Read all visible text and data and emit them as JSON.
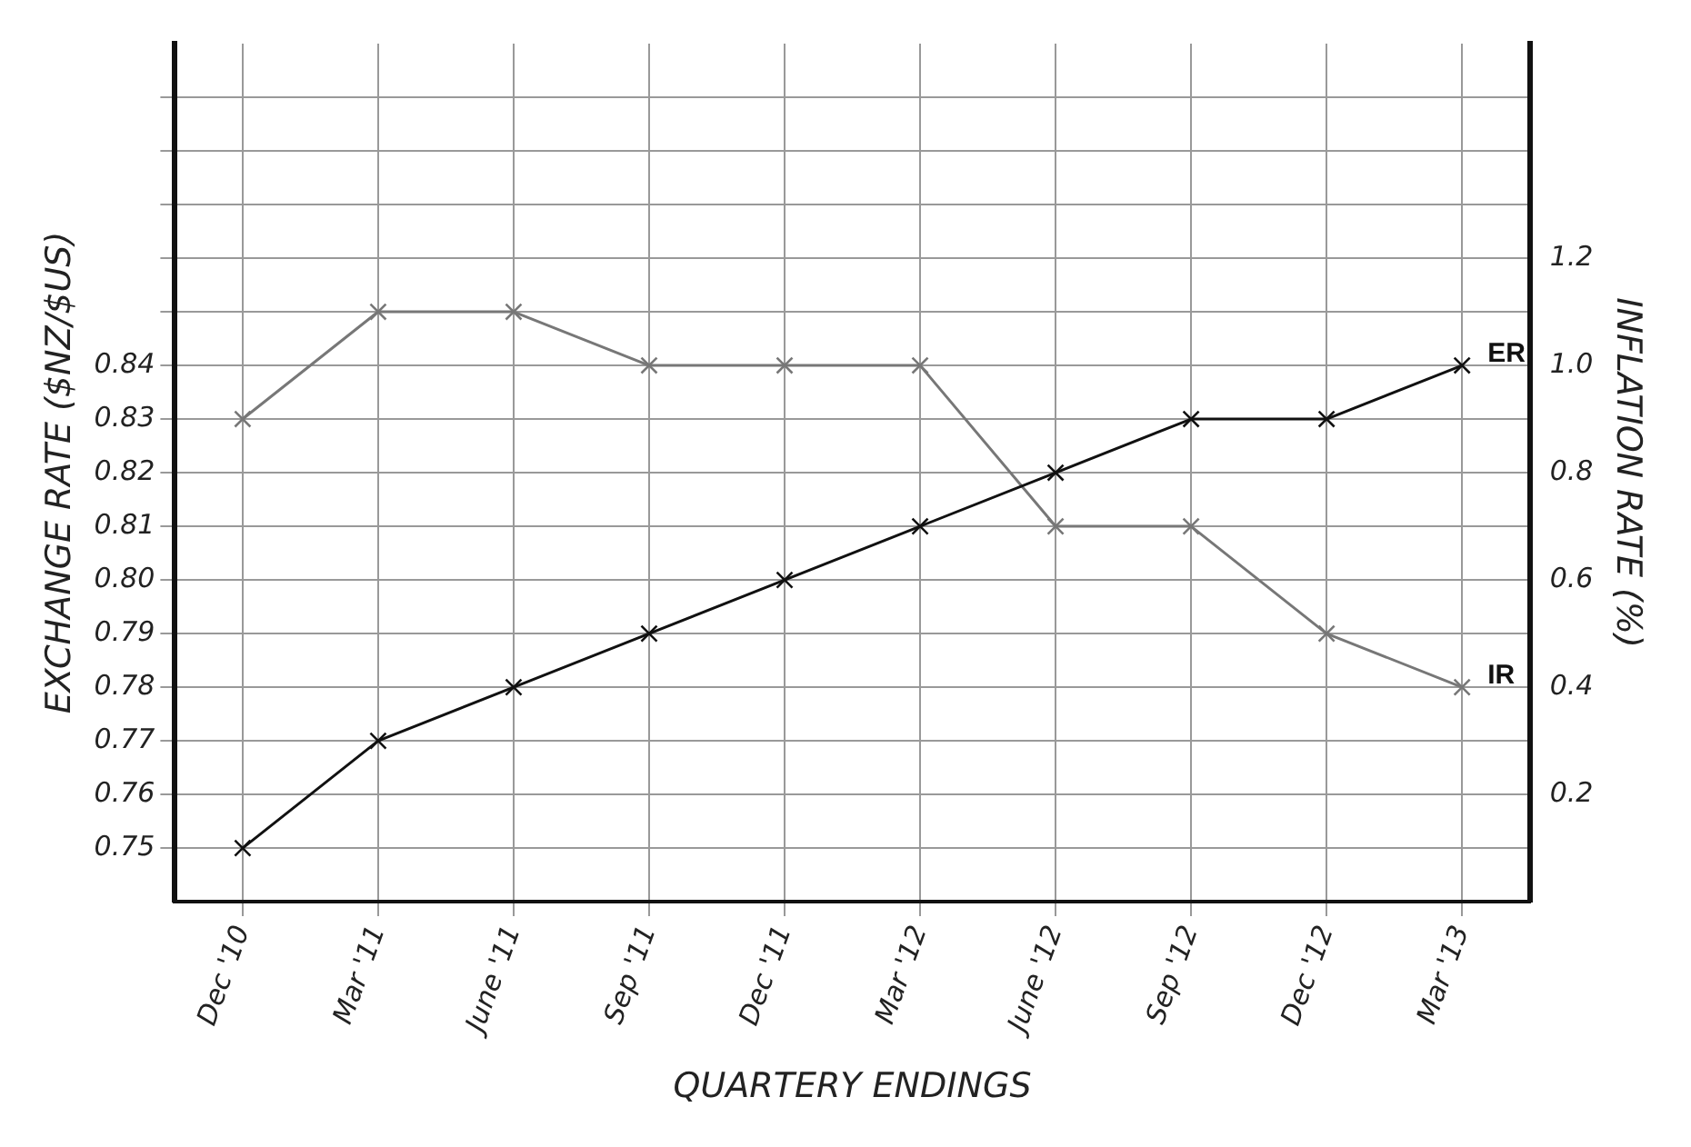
{
  "chart_data": {
    "type": "line",
    "xlabel": "QUARTERY ENDINGS",
    "ylabel": "EXCHANGE RATE ($NZ/$US)",
    "y2label": "INFLATION RATE (%)",
    "categories": [
      "Dec '10",
      "Mar '11",
      "June '11",
      "Sep '11",
      "Dec '11",
      "Mar '12",
      "June '12",
      "Sep '12",
      "Dec '12",
      "Mar '13"
    ],
    "series": [
      {
        "name": "ER",
        "color": "#111111",
        "values": [
          0.75,
          0.77,
          0.78,
          0.79,
          0.8,
          0.81,
          0.82,
          0.83,
          0.83,
          0.84
        ]
      },
      {
        "name": "IR",
        "color": "#777777",
        "axis": "y2",
        "values": [
          0.9,
          1.1,
          1.1,
          1.0,
          1.0,
          1.0,
          0.7,
          0.7,
          0.5,
          0.4
        ]
      }
    ],
    "ylim": [
      0.74,
      0.9
    ],
    "yticks": [
      0.75,
      0.76,
      0.77,
      0.78,
      0.79,
      {
        "value": 0.8,
        "label": "0.80"
      },
      0.81,
      0.82,
      0.83,
      0.84,
      {
        "value": 0.85,
        "label": null
      },
      {
        "value": 0.86,
        "label": null
      },
      {
        "value": 0.87,
        "label": null
      },
      {
        "value": 0.88,
        "label": null
      },
      {
        "value": 0.89,
        "label": null
      }
    ],
    "y2lim": [
      0,
      1.6
    ],
    "y2ticks": [
      0.2,
      0.4,
      0.6,
      0.8,
      {
        "value": 1.0,
        "label": "1.0"
      },
      1.2
    ],
    "grid": true,
    "legend": false,
    "marker": "cross",
    "line_style": "solid"
  }
}
